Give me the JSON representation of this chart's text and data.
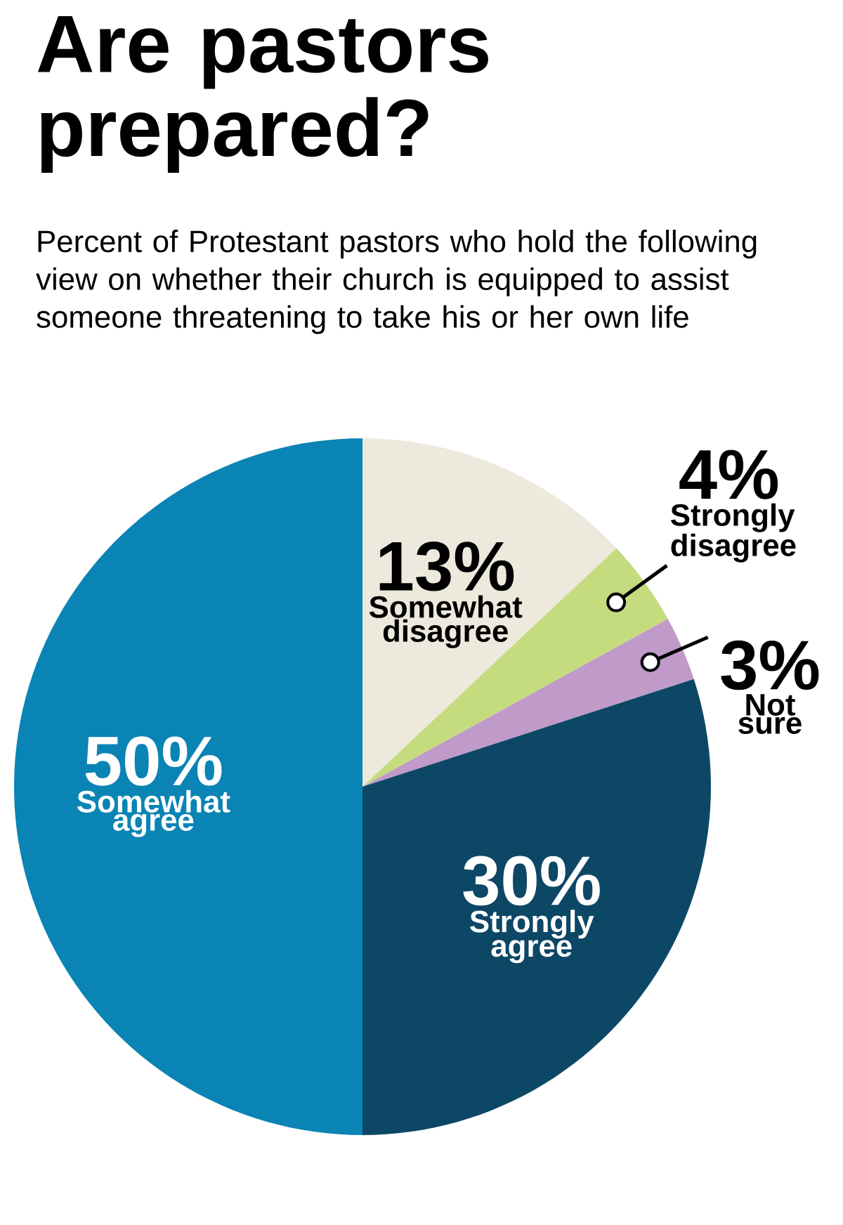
{
  "chart_data": {
    "type": "pie",
    "title": "Are pastors prepared?",
    "subtitle": "Percent of Protestant pastors who hold the following view on whether their church is equipped to assist someone threatening to take his or her own life",
    "categories": [
      "Somewhat disagree",
      "Strongly disagree",
      "Not sure",
      "Strongly agree",
      "Somewhat agree"
    ],
    "values": [
      13,
      4,
      3,
      30,
      50
    ],
    "value_labels": [
      "13%",
      "4%",
      "3%",
      "30%",
      "50%"
    ],
    "colors": [
      "#ede9dc",
      "#c5dc7e",
      "#c09ac8",
      "#0d4766",
      "#0a84b4"
    ]
  }
}
